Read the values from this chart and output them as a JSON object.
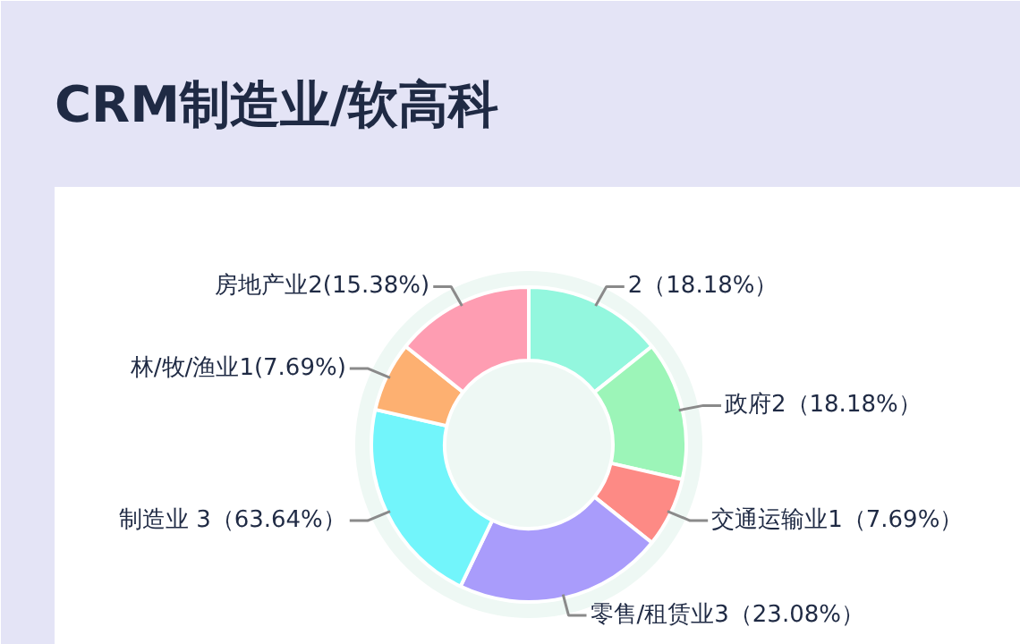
{
  "chart_data": {
    "type": "donut",
    "title": "CRM制造业/软高科",
    "categories": [
      null,
      "政府",
      "交通运输业",
      "零售/租赁业",
      "制造业",
      "林/牧/渔业",
      "房地产业"
    ],
    "values": [
      2,
      2,
      1,
      3,
      3,
      1,
      2
    ],
    "value_labels": [
      "2（18.18%）",
      "2（18.18%）",
      "1（7.69%）",
      "3（23.08%）",
      " 3（63.64%）",
      "1(7.69%)",
      "2(15.38%)"
    ],
    "colors": [
      "#93f7de",
      "#9cf5b8",
      "#fd8a85",
      "#a99cfb",
      "#72f5fb",
      "#fdb071",
      "#fe9db2"
    ]
  }
}
